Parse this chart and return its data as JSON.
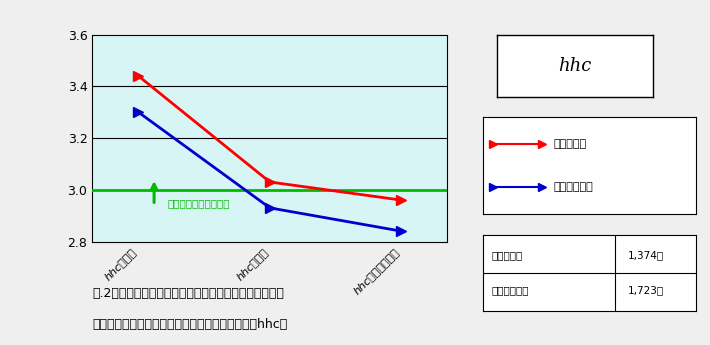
{
  "categories": [
    "hhcの理解",
    "hhcの実践",
    "hhcプロジェクト"
  ],
  "series_trained": [
    3.44,
    3.03,
    2.96
  ],
  "series_untrained": [
    3.3,
    2.93,
    2.84
  ],
  "trained_color": "#FF0000",
  "untrained_color": "#0000CC",
  "trained_label": "研修受講者",
  "untrained_label": "研修未受講者",
  "trained_count": "1,374名",
  "untrained_count": "1,723名",
  "score3_label": "スコア３：できている",
  "score3_value": 3.0,
  "score3_color": "#00BB00",
  "ylim": [
    2.8,
    3.6
  ],
  "yticks": [
    2.8,
    3.0,
    3.2,
    3.4,
    3.6
  ],
  "bg_color": "#D8F5F5",
  "hhc_box_text": "hhc",
  "caption_line1": "図.2　第五回　日々の業務の取り組み方についての調査",
  "caption_line2": "ナレッジリーダー研修受講者・未受講者の比較（hhc）",
  "grid_color": "#000000",
  "marker_size": 7,
  "fig_bg": "#EFEFEF"
}
